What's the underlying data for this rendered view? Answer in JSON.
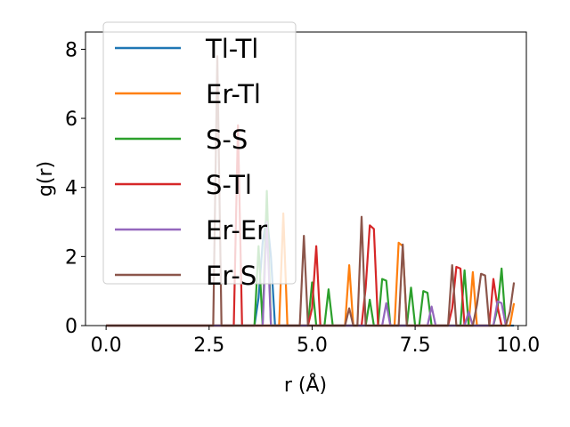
{
  "chart_data": {
    "type": "line",
    "xlabel": "r (Å)",
    "ylabel": "g(r)",
    "xlim": [
      -0.5,
      10.2
    ],
    "ylim": [
      0,
      8.5
    ],
    "xticks": [
      {
        "value": 0.0,
        "label": "0.0"
      },
      {
        "value": 2.5,
        "label": "2.5"
      },
      {
        "value": 5.0,
        "label": "5.0"
      },
      {
        "value": 7.5,
        "label": "7.5"
      },
      {
        "value": 10.0,
        "label": "10.0"
      }
    ],
    "yticks": [
      {
        "value": 0,
        "label": "0"
      },
      {
        "value": 2,
        "label": "2"
      },
      {
        "value": 4,
        "label": "4"
      },
      {
        "value": 6,
        "label": "6"
      },
      {
        "value": 8,
        "label": "8"
      }
    ],
    "grid": false,
    "legend_position": "top-left",
    "series": [
      {
        "name": "Tl-Tl",
        "color": "#1f77b4",
        "x": [
          0.0,
          3.6,
          3.7,
          3.8,
          3.9,
          4.0,
          4.1,
          9.9
        ],
        "y": [
          0,
          0,
          0.8,
          2.4,
          3.2,
          2.0,
          0,
          0
        ]
      },
      {
        "name": "Er-Tl",
        "color": "#ff7f0e",
        "x": [
          0.0,
          4.2,
          4.3,
          4.4,
          5.8,
          5.9,
          6.0,
          7.0,
          7.1,
          7.2,
          7.3,
          8.8,
          8.9,
          9.0,
          9.8,
          9.9
        ],
        "y": [
          0,
          0,
          3.25,
          0,
          0,
          1.75,
          0,
          0,
          2.4,
          2.3,
          0,
          0,
          1.55,
          0,
          0,
          0.65
        ]
      },
      {
        "name": "S-S",
        "color": "#2ca02c",
        "x": [
          0.0,
          3.6,
          3.7,
          3.8,
          3.9,
          4.0,
          4.9,
          5.0,
          5.1,
          5.3,
          5.4,
          5.5,
          6.3,
          6.4,
          6.5,
          6.6,
          6.7,
          6.8,
          6.9,
          7.3,
          7.4,
          7.5,
          7.6,
          7.7,
          7.8,
          7.9,
          8.0,
          8.6,
          8.7,
          8.8,
          9.4,
          9.5,
          9.6,
          9.7
        ],
        "y": [
          0,
          0,
          2.3,
          0,
          3.9,
          0,
          0,
          1.25,
          0,
          0,
          1.05,
          0,
          0,
          0.75,
          0,
          0,
          1.35,
          1.3,
          0,
          0,
          1.1,
          0,
          0,
          1.0,
          0.95,
          0,
          0,
          0,
          1.6,
          0,
          0,
          0.5,
          1.65,
          0
        ]
      },
      {
        "name": "S-Tl",
        "color": "#d62728",
        "x": [
          0.0,
          3.1,
          3.2,
          3.3,
          4.9,
          5.0,
          5.1,
          5.2,
          6.2,
          6.3,
          6.4,
          6.5,
          6.6,
          8.3,
          8.4,
          8.5,
          8.6,
          8.7,
          9.3,
          9.4,
          9.5,
          9.6
        ],
        "y": [
          0,
          0,
          5.8,
          0,
          0,
          0.5,
          2.3,
          0,
          0,
          1.1,
          2.9,
          2.8,
          0,
          0,
          0.5,
          1.7,
          1.65,
          0,
          0,
          1.35,
          0.55,
          0
        ]
      },
      {
        "name": "Er-Er",
        "color": "#9467bd",
        "x": [
          0.0,
          3.8,
          3.9,
          4.0,
          6.7,
          6.8,
          6.9,
          7.8,
          7.9,
          8.0,
          8.7,
          8.8,
          8.9,
          9.4,
          9.5,
          9.6,
          9.7
        ],
        "y": [
          0,
          0,
          3.0,
          0,
          0,
          0.65,
          0,
          0,
          0.55,
          0,
          0,
          0.4,
          0,
          0,
          0.7,
          0.65,
          0
        ]
      },
      {
        "name": "Er-S",
        "color": "#8c564b",
        "x": [
          0.0,
          2.6,
          2.7,
          2.8,
          4.7,
          4.8,
          4.9,
          5.8,
          5.9,
          6.0,
          6.1,
          6.2,
          6.3,
          7.1,
          7.2,
          7.3,
          8.3,
          8.4,
          8.5,
          8.9,
          9.0,
          9.1,
          9.2,
          9.3,
          9.7,
          9.8,
          9.9
        ],
        "y": [
          0,
          0,
          7.8,
          0,
          0,
          2.6,
          0,
          0,
          0.5,
          0,
          0,
          3.15,
          0,
          0,
          2.35,
          0,
          0,
          1.75,
          0,
          0,
          0.6,
          1.5,
          1.45,
          0,
          0,
          0.4,
          1.25
        ]
      }
    ]
  }
}
